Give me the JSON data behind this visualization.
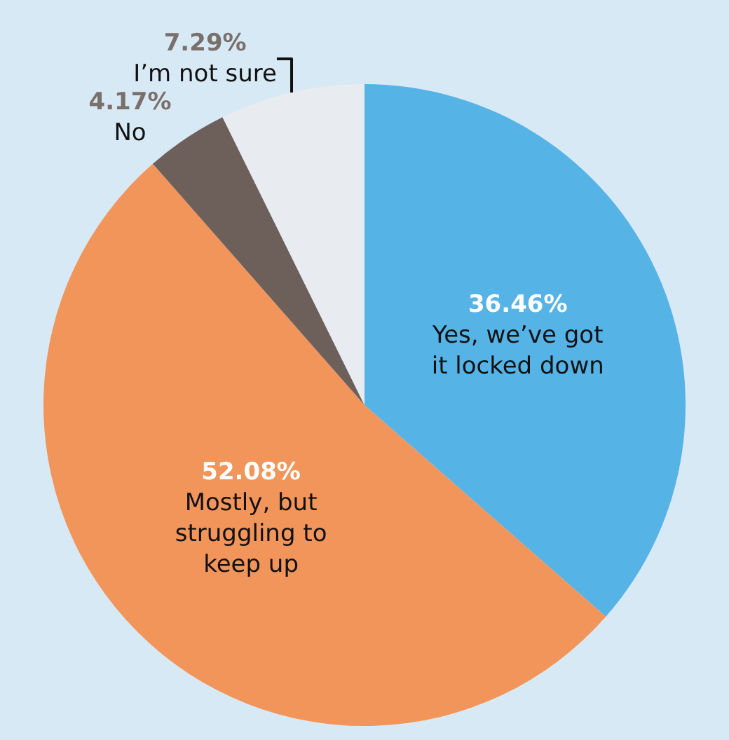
{
  "chart_data": {
    "type": "pie",
    "categories": [
      "Yes, we’ve got it locked down",
      "Mostly, but struggling to keep up",
      "No",
      "I’m not sure"
    ],
    "values": [
      36.46,
      52.08,
      4.17,
      7.29
    ],
    "colors": [
      "#56b3e6",
      "#f2955b",
      "#6d5f5a",
      "#e8ebef"
    ],
    "value_labels": [
      "36.46%",
      "52.08%",
      "4.17%",
      "7.29%"
    ]
  }
}
